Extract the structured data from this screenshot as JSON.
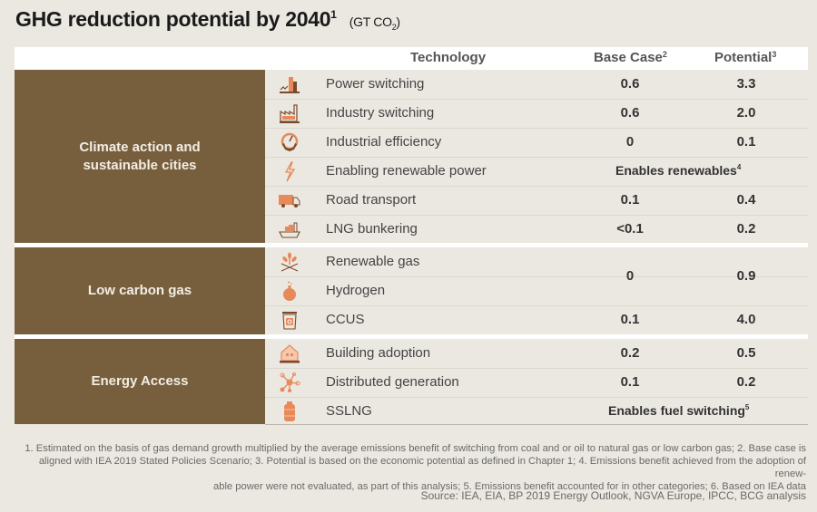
{
  "title": {
    "text": "GHG reduction potential by 2040",
    "superscript": "1",
    "unit_prefix": "(GT CO",
    "unit_sub": "2",
    "unit_suffix": ")"
  },
  "header": {
    "technology": "Technology",
    "base_case": "Base Case",
    "base_case_sup": "2",
    "potential": "Potential",
    "potential_sup": "3"
  },
  "colors": {
    "group_bg": "#775f3e",
    "icon_orange": "#e8895a",
    "icon_brown": "#7a4a2c"
  },
  "groups": [
    {
      "label_line1": "Climate action and",
      "label_line2": "sustainable cities",
      "rows": [
        {
          "icon": "power-plant-icon",
          "name": "Power switching",
          "base": "0.6",
          "potential": "3.3"
        },
        {
          "icon": "factory-icon",
          "name": "Industry switching",
          "base": "0.6",
          "potential": "2.0"
        },
        {
          "icon": "gear-gauge-icon",
          "name": "Industrial efficiency",
          "base": "0",
          "potential": "0.1"
        },
        {
          "icon": "lightning-icon",
          "name": "Enabling renewable power",
          "span": "Enables renewables",
          "span_sup": "4"
        },
        {
          "icon": "truck-icon",
          "name": "Road transport",
          "base": "0.1",
          "potential": "0.4"
        },
        {
          "icon": "ship-icon",
          "name": "LNG bunkering",
          "base": "<0.1",
          "potential": "0.2"
        }
      ]
    },
    {
      "label": "Low carbon gas",
      "rows": [
        {
          "icon": "sprout-icon",
          "name": "Renewable gas"
        },
        {
          "icon": "flask-icon",
          "name": "Hydrogen"
        },
        {
          "icon": "recycle-bin-icon",
          "name": "CCUS",
          "base": "0.1",
          "potential": "4.0"
        }
      ],
      "merged": {
        "base": "0",
        "potential": "0.9"
      }
    },
    {
      "label": "Energy Access",
      "rows": [
        {
          "icon": "house-icon",
          "name": "Building adoption",
          "base": "0.2",
          "potential": "0.5"
        },
        {
          "icon": "network-icon",
          "name": "Distributed generation",
          "base": "0.1",
          "potential": "0.2"
        },
        {
          "icon": "gas-cylinder-icon",
          "name": "SSLNG",
          "span": "Enables fuel switching",
          "span_sup": "5"
        }
      ]
    }
  ],
  "footnotes": {
    "line1": "1. Estimated on the basis of gas demand growth multiplied by the average emissions benefit of switching from coal and or oil to natural gas or low carbon gas; 2. Base case is",
    "line2": "aligned with IEA 2019 Stated Policies Scenario; 3. Potential is based on the economic potential as defined in Chapter 1; 4. Emissions benefit achieved from the adoption of renew-",
    "line3": "able power were not evaluated, as part of this analysis; 5. Emissions benefit accounted for in other categories; 6. Based on IEA data"
  },
  "source": "Source: IEA, EIA, BP 2019 Energy Outlook, NGVA Europe, IPCC, BCG analysis"
}
